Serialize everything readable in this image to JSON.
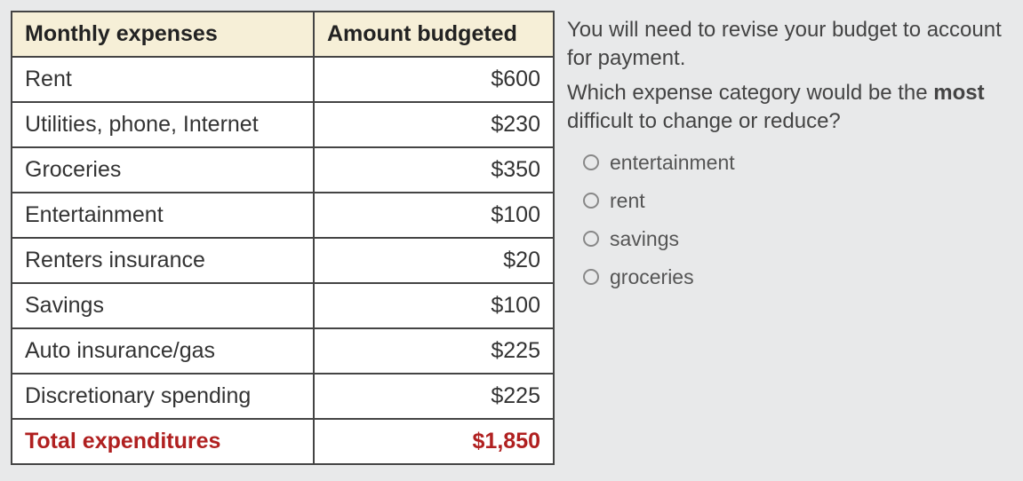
{
  "table": {
    "header": {
      "col1": "Monthly expenses",
      "col2": "Amount budgeted"
    },
    "rows": [
      {
        "label": "Rent",
        "amount": "$600"
      },
      {
        "label": "Utilities, phone, Internet",
        "amount": "$230"
      },
      {
        "label": "Groceries",
        "amount": "$350"
      },
      {
        "label": "Entertainment",
        "amount": "$100"
      },
      {
        "label": "Renters insurance",
        "amount": "$20"
      },
      {
        "label": "Savings",
        "amount": "$100"
      },
      {
        "label": "Auto insurance/gas",
        "amount": "$225"
      },
      {
        "label": "Discretionary spending",
        "amount": "$225"
      }
    ],
    "total": {
      "label": "Total expenditures",
      "amount": "$1,850"
    },
    "col_widths": [
      "340px",
      "270px"
    ],
    "header_bg": "#f6efd7",
    "border_color": "#444",
    "total_color": "#b02020"
  },
  "question": {
    "line1": "You will need to revise your budget to account for payment.",
    "line2_pre": "Which expense category would be the ",
    "line2_em": "most",
    "line2_post": " difficult to change or reduce?",
    "options": [
      "entertainment",
      "rent",
      "savings",
      "groceries"
    ]
  }
}
